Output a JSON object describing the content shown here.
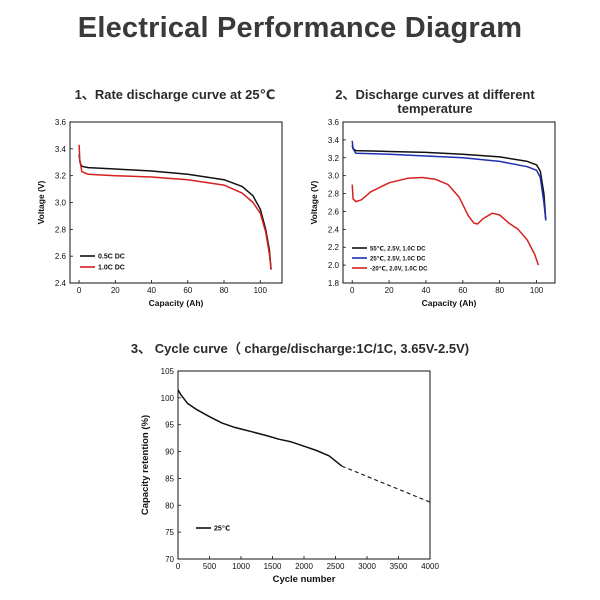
{
  "page": {
    "title": "Electrical Performance Diagram"
  },
  "chart_data": [
    {
      "type": "line",
      "title": "1、Rate discharge curve at 25℃",
      "xlabel": "Capacity (Ah)",
      "ylabel": "Voltage (V)",
      "xlim": [
        -5,
        112
      ],
      "ylim": [
        2.4,
        3.6
      ],
      "x_ticks": [
        0,
        20,
        40,
        60,
        80,
        100
      ],
      "y_ticks": [
        2.4,
        2.6,
        2.8,
        3.0,
        3.2,
        3.4,
        3.6
      ],
      "legend_position": "bottom-left",
      "series": [
        {
          "name": "0.5C DC",
          "color": "#111111",
          "points": [
            [
              0,
              3.36
            ],
            [
              0.5,
              3.3
            ],
            [
              1.5,
              3.27
            ],
            [
              5,
              3.26
            ],
            [
              20,
              3.25
            ],
            [
              40,
              3.235
            ],
            [
              60,
              3.21
            ],
            [
              80,
              3.17
            ],
            [
              90,
              3.12
            ],
            [
              96,
              3.05
            ],
            [
              100,
              2.95
            ],
            [
              103,
              2.8
            ],
            [
              105,
              2.65
            ],
            [
              106,
              2.5
            ]
          ]
        },
        {
          "name": "1.0C DC",
          "color": "#d62020",
          "points": [
            [
              0,
              3.43
            ],
            [
              0.4,
              3.32
            ],
            [
              1.5,
              3.23
            ],
            [
              5,
              3.21
            ],
            [
              20,
              3.2
            ],
            [
              40,
              3.19
            ],
            [
              60,
              3.17
            ],
            [
              80,
              3.13
            ],
            [
              90,
              3.07
            ],
            [
              96,
              3.0
            ],
            [
              100,
              2.92
            ],
            [
              103,
              2.78
            ],
            [
              105,
              2.62
            ],
            [
              106,
              2.5
            ]
          ]
        }
      ]
    },
    {
      "type": "line",
      "title": "2、Discharge curves at different temperature",
      "xlabel": "Capacity (Ah)",
      "ylabel": "Voltage (V)",
      "xlim": [
        -5,
        110
      ],
      "ylim": [
        1.8,
        3.6
      ],
      "x_ticks": [
        0,
        20,
        40,
        60,
        80,
        100
      ],
      "y_ticks": [
        1.8,
        2.0,
        2.2,
        2.4,
        2.6,
        2.8,
        3.0,
        3.2,
        3.4,
        3.6
      ],
      "legend_position": "bottom-left",
      "series": [
        {
          "name": "55℃, 2.5V, 1.0C DC",
          "color": "#111111",
          "points": [
            [
              0,
              3.34
            ],
            [
              0.5,
              3.3
            ],
            [
              2,
              3.28
            ],
            [
              20,
              3.27
            ],
            [
              40,
              3.26
            ],
            [
              60,
              3.24
            ],
            [
              80,
              3.21
            ],
            [
              95,
              3.16
            ],
            [
              100,
              3.12
            ],
            [
              102,
              3.05
            ],
            [
              104,
              2.8
            ],
            [
              105,
              2.5
            ]
          ]
        },
        {
          "name": "25℃, 2.5V, 1.0C DC",
          "color": "#1f2fb0",
          "points": [
            [
              0,
              3.39
            ],
            [
              0.5,
              3.3
            ],
            [
              2,
              3.25
            ],
            [
              20,
              3.24
            ],
            [
              40,
              3.22
            ],
            [
              60,
              3.2
            ],
            [
              80,
              3.16
            ],
            [
              95,
              3.1
            ],
            [
              100,
              3.06
            ],
            [
              102,
              2.98
            ],
            [
              104,
              2.7
            ],
            [
              105,
              2.5
            ]
          ]
        },
        {
          "name": "-20℃, 2.0V, 1.0C DC",
          "color": "#d62020",
          "points": [
            [
              0,
              2.9
            ],
            [
              0.5,
              2.74
            ],
            [
              2,
              2.71
            ],
            [
              5,
              2.73
            ],
            [
              10,
              2.82
            ],
            [
              20,
              2.92
            ],
            [
              30,
              2.97
            ],
            [
              38,
              2.98
            ],
            [
              45,
              2.96
            ],
            [
              52,
              2.9
            ],
            [
              58,
              2.76
            ],
            [
              63,
              2.55
            ],
            [
              66,
              2.47
            ],
            [
              68,
              2.46
            ],
            [
              71,
              2.52
            ],
            [
              76,
              2.58
            ],
            [
              80,
              2.56
            ],
            [
              85,
              2.47
            ],
            [
              90,
              2.4
            ],
            [
              95,
              2.28
            ],
            [
              99,
              2.12
            ],
            [
              101,
              2.0
            ]
          ]
        }
      ]
    },
    {
      "type": "line",
      "title": "3、 Cycle curve（ charge/discharge:1C/1C, 3.65V-2.5V)",
      "xlabel": "Cycle number",
      "ylabel": "Capacity retention (%)",
      "xlim": [
        0,
        4000
      ],
      "ylim": [
        70,
        105
      ],
      "x_ticks": [
        0,
        500,
        1000,
        1500,
        2000,
        2500,
        3000,
        3500,
        4000
      ],
      "y_ticks": [
        70,
        75,
        80,
        85,
        90,
        95,
        100,
        105
      ],
      "legend_position": "bottom-left",
      "series": [
        {
          "name": "25℃",
          "color": "#111111",
          "style": "solid",
          "points": [
            [
              0,
              101.5
            ],
            [
              50,
              100.5
            ],
            [
              150,
              99.0
            ],
            [
              300,
              97.8
            ],
            [
              500,
              96.5
            ],
            [
              700,
              95.3
            ],
            [
              900,
              94.5
            ],
            [
              1000,
              94.2
            ],
            [
              1200,
              93.6
            ],
            [
              1400,
              93.0
            ],
            [
              1600,
              92.3
            ],
            [
              1800,
              91.8
            ],
            [
              2000,
              91.0
            ],
            [
              2200,
              90.2
            ],
            [
              2400,
              89.2
            ],
            [
              2600,
              87.3
            ]
          ]
        },
        {
          "name": "",
          "color": "#111111",
          "style": "dashed",
          "points": [
            [
              2600,
              87.3
            ],
            [
              4000,
              80.6
            ]
          ]
        }
      ]
    }
  ]
}
